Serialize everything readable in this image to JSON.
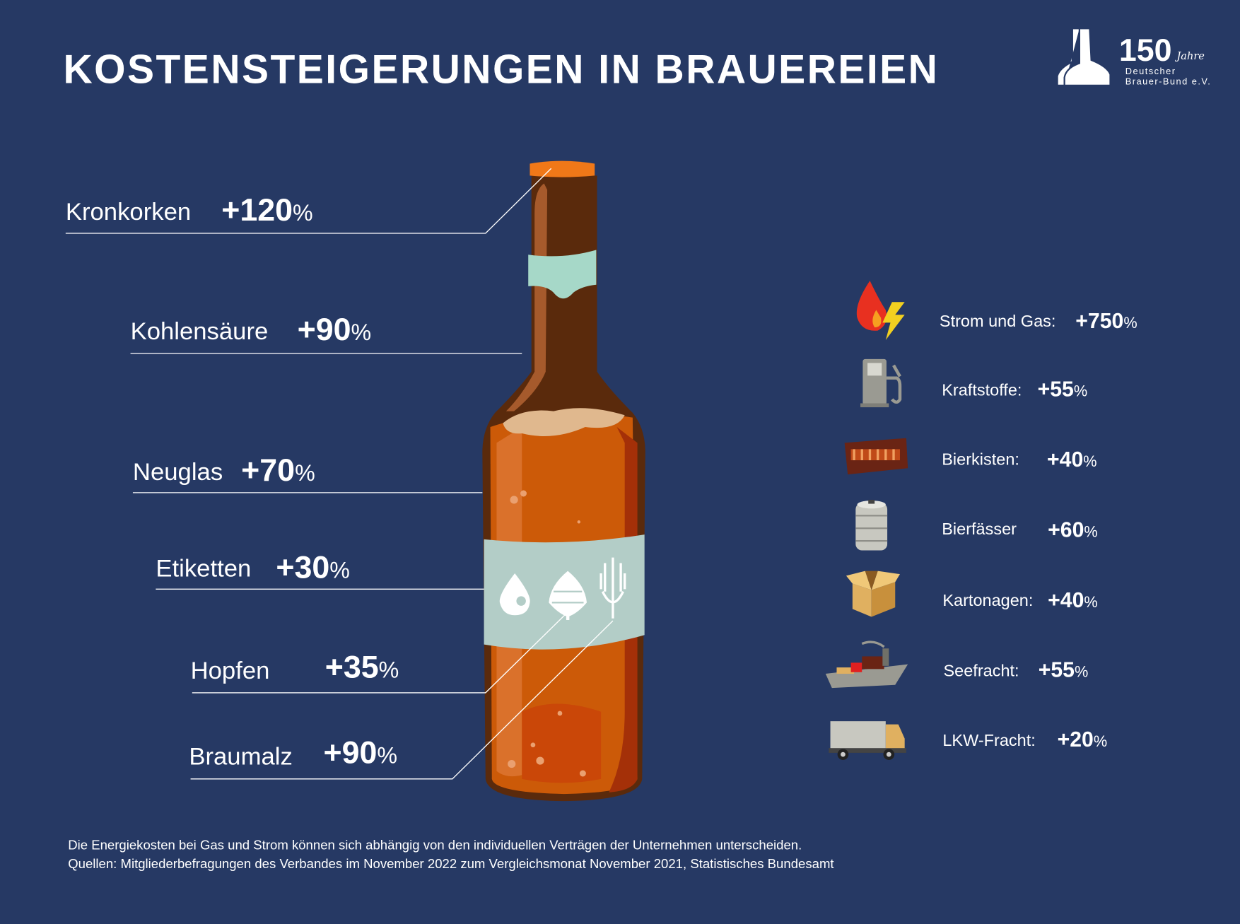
{
  "title": "KOSTENSTEIGERUNGEN IN BRAUEREIEN",
  "logo": {
    "number": "150",
    "jahre": "Jahre",
    "line1": "Deutscher",
    "line2": "Brauer-Bund e.V."
  },
  "colors": {
    "background": "#263964",
    "bottle": "#5a2a0c",
    "beer": "#cc5a08",
    "label": "#b3cdc7",
    "cap": "#f07818"
  },
  "bottle_items": [
    {
      "label": "Kronkorken",
      "value": "+120",
      "unit": "%"
    },
    {
      "label": "Kohlensäure",
      "value": "+90",
      "unit": "%"
    },
    {
      "label": "Neuglas",
      "value": "+70",
      "unit": "%"
    },
    {
      "label": "Etiketten",
      "value": "+30",
      "unit": "%"
    },
    {
      "label": "Hopfen",
      "value": "+35",
      "unit": "%"
    },
    {
      "label": "Braumalz",
      "value": "+90",
      "unit": "%"
    }
  ],
  "side_items": [
    {
      "icon": "fire-lightning-icon",
      "label": "Strom und Gas:",
      "value": "+750",
      "unit": "%"
    },
    {
      "icon": "fuel-pump-icon",
      "label": "Kraftstoffe:",
      "value": "+55",
      "unit": "%"
    },
    {
      "icon": "beer-crate-icon",
      "label": "Bierkisten:",
      "value": "+40",
      "unit": "%"
    },
    {
      "icon": "keg-icon",
      "label": "Bierfässer",
      "value": "+60",
      "unit": "%"
    },
    {
      "icon": "cardboard-box-icon",
      "label": "Kartonagen:",
      "value": "+40",
      "unit": "%"
    },
    {
      "icon": "cargo-ship-icon",
      "label": "Seefracht:",
      "value": "+55",
      "unit": "%"
    },
    {
      "icon": "truck-icon",
      "label": "LKW-Fracht:",
      "value": "+20",
      "unit": "%"
    }
  ],
  "footer": {
    "line1": "Die Energiekosten bei Gas und Strom können sich abhängig von den individuellen Verträgen der Unternehmen unterscheiden.",
    "line2": "Quellen: Mitgliederbefragungen des Verbandes im November 2022 zum Vergleichsmonat November 2021, Statistisches Bundesamt"
  }
}
